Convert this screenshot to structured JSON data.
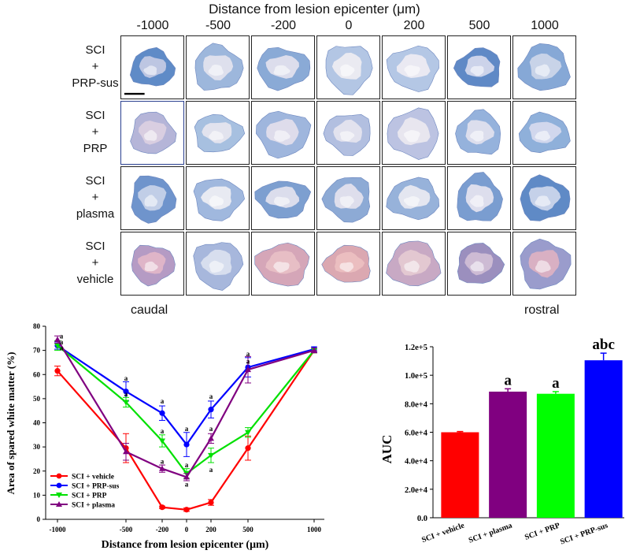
{
  "micrograph_panel": {
    "title": "Distance from lesion epicenter (μm)",
    "columns": [
      "-1000",
      "-500",
      "-200",
      "0",
      "200",
      "500",
      "1000"
    ],
    "rows": [
      {
        "line1": "SCI",
        "line2": "+",
        "line3": "PRP-sus"
      },
      {
        "line1": "SCI",
        "line2": "+",
        "line3": "PRP"
      },
      {
        "line1": "SCI",
        "line2": "+",
        "line3": "plasma"
      },
      {
        "line1": "SCI",
        "line2": "+",
        "line3": "vehicle"
      }
    ],
    "caudal_label": "caudal",
    "rostral_label": "rostral"
  },
  "chart_data": [
    {
      "type": "line",
      "title": "",
      "xlabel": "Distance from lesion epicenter (μm)",
      "ylabel": "Area of spared white matter (%)",
      "x": [
        -1000,
        -500,
        -200,
        0,
        200,
        500,
        1000
      ],
      "x_tick_labels": [
        "-1000",
        "-500",
        "-200",
        "0",
        "200",
        "500",
        "1000"
      ],
      "ylim": [
        0,
        80
      ],
      "y_ticks": [
        "0",
        "10",
        "20",
        "30",
        "40",
        "50",
        "60",
        "70",
        "80"
      ],
      "legend_position": "bottom-left",
      "series": [
        {
          "name": "SCI + vehicle",
          "color": "#ff0000",
          "marker": "circle",
          "values": [
            61.5,
            29.5,
            5,
            4,
            7,
            29.5,
            70
          ],
          "errors": [
            2,
            6,
            0.5,
            0.7,
            1.2,
            5,
            1
          ]
        },
        {
          "name": "SCI + PRP-sus",
          "color": "#0000ff",
          "marker": "circle",
          "values": [
            72,
            53,
            44,
            31,
            45.5,
            63,
            70.5
          ],
          "errors": [
            1.5,
            4,
            3,
            5,
            3.5,
            4,
            1
          ]
        },
        {
          "name": "SCI + PRP",
          "color": "#00e000",
          "marker": "triangle-down",
          "values": [
            72,
            48.5,
            32.5,
            19,
            26.5,
            36,
            70
          ],
          "errors": [
            2,
            2,
            2.5,
            2,
            3,
            2,
            1
          ]
        },
        {
          "name": "SCI + plasma",
          "color": "#800080",
          "marker": "triangle-up",
          "values": [
            74.5,
            28,
            21,
            17.5,
            33.5,
            62,
            70
          ],
          "errors": [
            1.5,
            3.5,
            1.5,
            1.5,
            2,
            5.5,
            1
          ]
        }
      ],
      "annotations": [
        {
          "x": -1000,
          "y": 76,
          "text": "a"
        },
        {
          "x": -1000,
          "y": 73.5,
          "text": "a"
        },
        {
          "x": -1000,
          "y": 71,
          "text": "a"
        },
        {
          "x": -500,
          "y": 58.5,
          "text": "a"
        },
        {
          "x": -500,
          "y": 52,
          "text": "a"
        },
        {
          "x": -200,
          "y": 49,
          "text": "a"
        },
        {
          "x": -200,
          "y": 36.5,
          "text": "a"
        },
        {
          "x": -200,
          "y": 24,
          "text": "a"
        },
        {
          "x": 0,
          "y": 37.5,
          "text": "a"
        },
        {
          "x": 0,
          "y": 22.5,
          "text": "a"
        },
        {
          "x": 0,
          "y": 14.5,
          "text": "a"
        },
        {
          "x": 200,
          "y": 51,
          "text": "a"
        },
        {
          "x": 200,
          "y": 37.5,
          "text": "a"
        },
        {
          "x": 200,
          "y": 20.5,
          "text": "a"
        },
        {
          "x": 500,
          "y": 68.5,
          "text": "a"
        },
        {
          "x": 500,
          "y": 65.5,
          "text": "a"
        }
      ]
    },
    {
      "type": "bar",
      "title": "",
      "xlabel": "",
      "ylabel": "AUC",
      "categories": [
        "SCI + vehicle",
        "SCI + plasma",
        "SCI + PRP",
        "SCI + PRP-sus"
      ],
      "values": [
        60000,
        88500,
        87000,
        110500
      ],
      "errors": [
        500,
        2000,
        1500,
        5000
      ],
      "colors": [
        "#ff0000",
        "#800080",
        "#00ff00",
        "#0000ff"
      ],
      "significance": [
        "",
        "a",
        "a",
        "abc"
      ],
      "ylim": [
        0,
        120000
      ],
      "y_ticks": [
        0,
        20000,
        40000,
        60000,
        80000,
        100000,
        120000
      ],
      "y_tick_labels": [
        "0.0",
        "2.0e+4",
        "4.0e+4",
        "6.0e+4",
        "8.0e+4",
        "1.0e+5",
        "1.2e+5"
      ]
    }
  ]
}
